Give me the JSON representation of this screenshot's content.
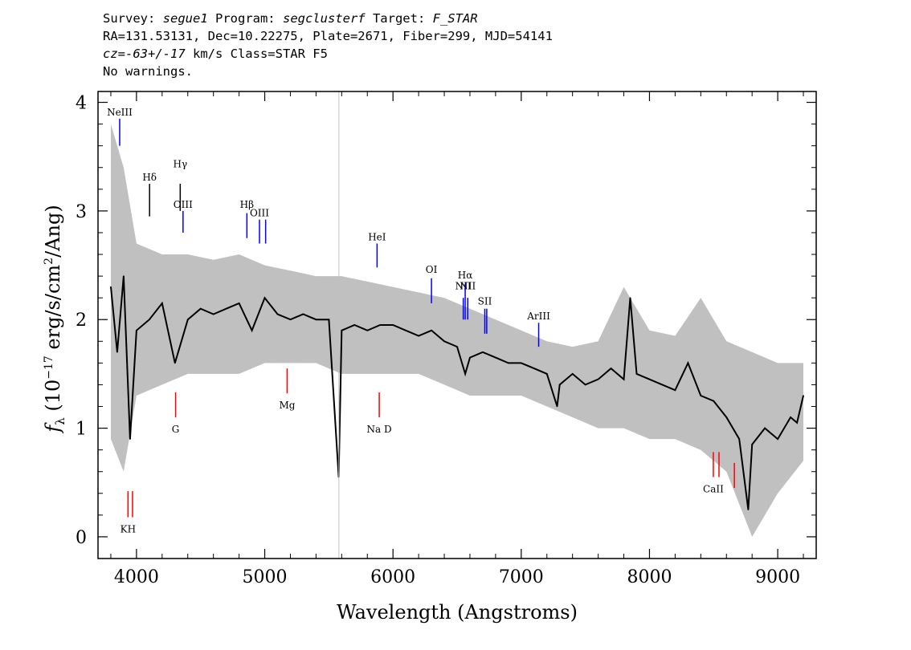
{
  "header": {
    "line1": {
      "survey_key": "Survey: ",
      "survey": "segue1",
      "program_key": " Program: ",
      "program": "segclusterf",
      "target_key": " Target: ",
      "target": "F_STAR"
    },
    "line2": "RA=131.53131, Dec=10.22275, Plate=2671, Fiber=299, MJD=54141",
    "line3": {
      "cz": "cz=-63+/-17",
      "rest": " km/s Class=STAR F5"
    },
    "line4": "No warnings."
  },
  "colors": {
    "flux": "#000000",
    "error": "#c0c0c0",
    "emission": "#0000ff",
    "absorption": "#ff0000",
    "neutral": "#000000"
  },
  "chart_data": {
    "type": "line",
    "xlabel": "Wavelength (Angstroms)",
    "ylabel_parts": {
      "f": "f",
      "lambda": "λ",
      "open": " (10",
      "exp": "−17",
      "mid": " erg/s/cm",
      "exp2": "2",
      "close": "/Ang)"
    },
    "xlim": [
      3700,
      9300
    ],
    "ylim": [
      -0.2,
      4.1
    ],
    "xticks": [
      4000,
      5000,
      6000,
      7000,
      8000,
      9000
    ],
    "yticks": [
      0,
      1,
      2,
      3,
      4
    ],
    "grid": false,
    "vertical_marker_x": 5578,
    "series": [
      {
        "role": "flux",
        "x": [
          3800,
          3850,
          3900,
          3950,
          4000,
          4100,
          4200,
          4300,
          4400,
          4500,
          4600,
          4700,
          4800,
          4900,
          5000,
          5100,
          5200,
          5300,
          5400,
          5500,
          5577,
          5600,
          5700,
          5800,
          5900,
          6000,
          6100,
          6200,
          6300,
          6400,
          6500,
          6563,
          6600,
          6700,
          6800,
          6900,
          7000,
          7100,
          7200,
          7280,
          7300,
          7400,
          7500,
          7600,
          7700,
          7800,
          7850,
          7900,
          8000,
          8100,
          8200,
          8300,
          8400,
          8500,
          8600,
          8700,
          8770,
          8800,
          8900,
          9000,
          9100,
          9150,
          9200
        ],
        "y": [
          2.3,
          1.7,
          2.4,
          0.9,
          1.9,
          2.0,
          2.15,
          1.6,
          2.0,
          2.1,
          2.05,
          2.1,
          2.15,
          1.9,
          2.2,
          2.05,
          2.0,
          2.05,
          2.0,
          2.0,
          0.55,
          1.9,
          1.95,
          1.9,
          1.95,
          1.95,
          1.9,
          1.85,
          1.9,
          1.8,
          1.75,
          1.5,
          1.65,
          1.7,
          1.65,
          1.6,
          1.6,
          1.55,
          1.5,
          1.2,
          1.4,
          1.5,
          1.4,
          1.45,
          1.55,
          1.45,
          2.2,
          1.5,
          1.45,
          1.4,
          1.35,
          1.6,
          1.3,
          1.25,
          1.1,
          0.9,
          0.25,
          0.85,
          1.0,
          0.9,
          1.1,
          1.05,
          1.3
        ]
      },
      {
        "role": "error",
        "x": [
          3800,
          3900,
          4000,
          4200,
          4400,
          4600,
          4800,
          5000,
          5200,
          5400,
          5600,
          5800,
          6000,
          6200,
          6400,
          6600,
          6800,
          7000,
          7200,
          7400,
          7600,
          7800,
          8000,
          8200,
          8400,
          8600,
          8800,
          9000,
          9200
        ],
        "upper": [
          3.8,
          3.4,
          2.7,
          2.6,
          2.6,
          2.55,
          2.6,
          2.5,
          2.45,
          2.4,
          2.4,
          2.35,
          2.3,
          2.25,
          2.2,
          2.1,
          2.0,
          1.9,
          1.8,
          1.75,
          1.8,
          2.3,
          1.9,
          1.85,
          2.2,
          1.8,
          1.7,
          1.6,
          1.6
        ],
        "lower": [
          0.9,
          0.6,
          1.3,
          1.4,
          1.5,
          1.5,
          1.5,
          1.6,
          1.6,
          1.6,
          1.5,
          1.5,
          1.5,
          1.5,
          1.4,
          1.3,
          1.3,
          1.3,
          1.2,
          1.1,
          1.0,
          1.0,
          0.9,
          0.9,
          0.8,
          0.6,
          0.0,
          0.4,
          0.7
        ]
      }
    ],
    "line_markers": [
      {
        "label": "NeIII",
        "x": 3869,
        "y1": 3.6,
        "y2": 3.85,
        "label_y": 3.88,
        "kind": "emission"
      },
      {
        "label": "Hδ",
        "x": 4102,
        "y1": 2.95,
        "y2": 3.25,
        "label_y": 3.28,
        "kind": "neutral"
      },
      {
        "label": "Hγ",
        "x": 4341,
        "y1": 3.0,
        "y2": 3.25,
        "label_y": 3.4,
        "kind": "neutral"
      },
      {
        "label": "OIII",
        "x": 4363,
        "y1": 2.8,
        "y2": 3.0,
        "label_y": 3.03,
        "kind": "emission"
      },
      {
        "label": "Hβ",
        "x": 4861,
        "y1": 2.75,
        "y2": 2.98,
        "label_y": 3.03,
        "kind": "emission"
      },
      {
        "label": "OIII",
        "x": 4959,
        "y1": 2.7,
        "y2": 2.92,
        "label_y": 2.95,
        "kind": "emission"
      },
      {
        "label": "",
        "x": 5007,
        "y1": 2.7,
        "y2": 2.92,
        "label_y": 2.95,
        "kind": "emission"
      },
      {
        "label": "HeI",
        "x": 5876,
        "y1": 2.48,
        "y2": 2.7,
        "label_y": 2.73,
        "kind": "emission"
      },
      {
        "label": "OI",
        "x": 6300,
        "y1": 2.15,
        "y2": 2.38,
        "label_y": 2.43,
        "kind": "emission"
      },
      {
        "label": "NII",
        "x": 6548,
        "y1": 2.0,
        "y2": 2.2,
        "label_y": 2.28,
        "kind": "emission"
      },
      {
        "label": "Hα",
        "x": 6563,
        "y1": 2.0,
        "y2": 2.33,
        "label_y": 2.38,
        "kind": "emission"
      },
      {
        "label": "NII",
        "x": 6583,
        "y1": 2.0,
        "y2": 2.2,
        "label_y": 2.28,
        "kind": "emission"
      },
      {
        "label": "SII",
        "x": 6716,
        "y1": 1.87,
        "y2": 2.1,
        "label_y": 2.14,
        "kind": "emission"
      },
      {
        "label": "",
        "x": 6731,
        "y1": 1.87,
        "y2": 2.1,
        "label_y": 2.14,
        "kind": "emission"
      },
      {
        "label": "ArIII",
        "x": 7136,
        "y1": 1.75,
        "y2": 1.97,
        "label_y": 2.0,
        "kind": "emission"
      },
      {
        "label": "KH",
        "x": 3934,
        "y1": 0.18,
        "y2": 0.42,
        "label_y": 0.04,
        "kind": "absorption"
      },
      {
        "label": "",
        "x": 3969,
        "y1": 0.18,
        "y2": 0.42,
        "label_y": 0.04,
        "kind": "absorption"
      },
      {
        "label": "G",
        "x": 4305,
        "y1": 1.1,
        "y2": 1.33,
        "label_y": 0.96,
        "kind": "absorption"
      },
      {
        "label": "Mg",
        "x": 5175,
        "y1": 1.32,
        "y2": 1.55,
        "label_y": 1.18,
        "kind": "absorption"
      },
      {
        "label": "Na D",
        "x": 5893,
        "y1": 1.1,
        "y2": 1.33,
        "label_y": 0.96,
        "kind": "absorption"
      },
      {
        "label": "CaII",
        "x": 8498,
        "y1": 0.55,
        "y2": 0.78,
        "label_y": 0.41,
        "kind": "absorption"
      },
      {
        "label": "",
        "x": 8542,
        "y1": 0.55,
        "y2": 0.78,
        "label_y": 0.41,
        "kind": "absorption"
      },
      {
        "label": "",
        "x": 8662,
        "y1": 0.45,
        "y2": 0.68,
        "label_y": 0.41,
        "kind": "absorption"
      }
    ]
  }
}
